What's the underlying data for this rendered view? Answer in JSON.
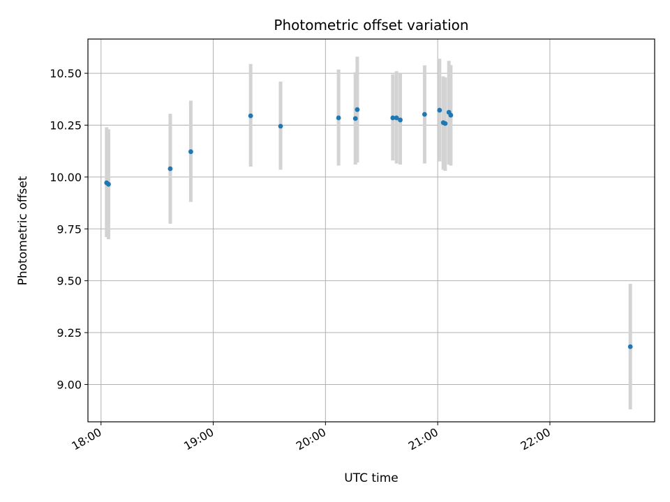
{
  "chart_data": {
    "type": "scatter",
    "title": "Photometric offset variation",
    "xlabel": "UTC time",
    "ylabel": "Photometric offset",
    "xlim": [
      "17:53",
      "22:56"
    ],
    "ylim": [
      8.82,
      10.665
    ],
    "grid": true,
    "x_ticks": [
      "18:00",
      "19:00",
      "20:00",
      "21:00",
      "22:00"
    ],
    "y_ticks": [
      9.0,
      9.25,
      9.5,
      9.75,
      10.0,
      10.25,
      10.5
    ],
    "y_tick_labels": [
      "9.00",
      "9.25",
      "9.50",
      "9.75",
      "10.00",
      "10.25",
      "10.50"
    ],
    "colors": {
      "marker": "#1f77b4",
      "errorbar": "#d3d3d3",
      "grid": "#b0b0b0"
    },
    "points": [
      {
        "x": "18:03",
        "y": 9.972,
        "lo": 9.71,
        "hi": 10.24
      },
      {
        "x": "18:04",
        "y": 9.965,
        "lo": 9.7,
        "hi": 10.23
      },
      {
        "x": "18:37",
        "y": 10.04,
        "lo": 9.775,
        "hi": 10.305
      },
      {
        "x": "18:48",
        "y": 10.122,
        "lo": 9.88,
        "hi": 10.368
      },
      {
        "x": "19:20",
        "y": 10.295,
        "lo": 10.05,
        "hi": 10.545
      },
      {
        "x": "19:36",
        "y": 10.245,
        "lo": 10.035,
        "hi": 10.46
      },
      {
        "x": "20:07",
        "y": 10.285,
        "lo": 10.055,
        "hi": 10.518
      },
      {
        "x": "20:16",
        "y": 10.282,
        "lo": 10.06,
        "hi": 10.505
      },
      {
        "x": "20:17",
        "y": 10.325,
        "lo": 10.07,
        "hi": 10.58
      },
      {
        "x": "20:36",
        "y": 10.285,
        "lo": 10.08,
        "hi": 10.495
      },
      {
        "x": "20:38",
        "y": 10.285,
        "lo": 10.065,
        "hi": 10.51
      },
      {
        "x": "20:40",
        "y": 10.275,
        "lo": 10.06,
        "hi": 10.5
      },
      {
        "x": "20:53",
        "y": 10.302,
        "lo": 10.065,
        "hi": 10.538
      },
      {
        "x": "21:01",
        "y": 10.322,
        "lo": 10.075,
        "hi": 10.57
      },
      {
        "x": "21:03",
        "y": 10.262,
        "lo": 10.035,
        "hi": 10.485
      },
      {
        "x": "21:04",
        "y": 10.258,
        "lo": 10.03,
        "hi": 10.48
      },
      {
        "x": "21:06",
        "y": 10.312,
        "lo": 10.06,
        "hi": 10.56
      },
      {
        "x": "21:07",
        "y": 10.298,
        "lo": 10.055,
        "hi": 10.54
      },
      {
        "x": "22:43",
        "y": 9.182,
        "lo": 8.88,
        "hi": 9.485
      }
    ]
  }
}
